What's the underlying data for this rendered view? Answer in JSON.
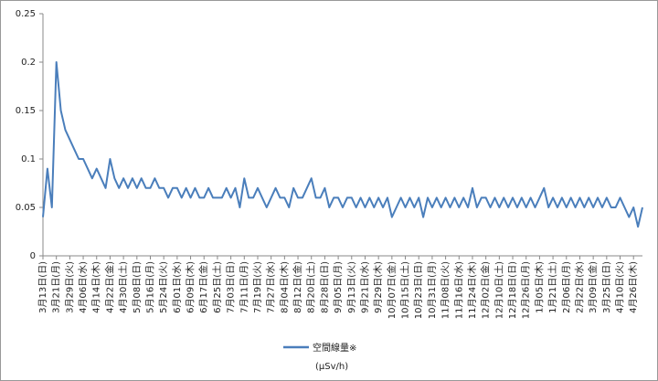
{
  "chart_data": {
    "type": "line",
    "categories": [
      "3月13日(日)",
      null,
      null,
      "3月21日(月)",
      null,
      null,
      "3月29日(火)",
      null,
      null,
      "4月06日(水)",
      null,
      null,
      "4月14日(木)",
      null,
      null,
      "4月22日(金)",
      null,
      null,
      "4月30日(土)",
      null,
      null,
      "5月08日(日)",
      null,
      null,
      "5月16日(月)",
      null,
      null,
      "5月24日(火)",
      null,
      null,
      "6月01日(水)",
      null,
      null,
      "6月09日(木)",
      null,
      null,
      "6月17日(金)",
      null,
      null,
      "6月25日(土)",
      null,
      null,
      "7月03日(日)",
      null,
      null,
      "7月11日(月)",
      null,
      null,
      "7月19日(火)",
      null,
      null,
      "7月27日(水)",
      null,
      null,
      "8月04日(木)",
      null,
      null,
      "8月12日(金)",
      null,
      null,
      "8月20日(土)",
      null,
      null,
      "8月28日(日)",
      null,
      null,
      "9月05日(月)",
      null,
      null,
      "9月13日(火)",
      null,
      null,
      "9月21日(水)",
      null,
      null,
      "9月29日(木)",
      null,
      null,
      "10月07日(金)",
      null,
      null,
      "10月15日(土)",
      null,
      null,
      "10月23日(日)",
      null,
      null,
      "10月31日(月)",
      null,
      null,
      "11月08日(火)",
      null,
      null,
      "11月16日(水)",
      null,
      null,
      "11月24日(木)",
      null,
      null,
      "12月02日(金)",
      null,
      null,
      "12月10日(土)",
      null,
      null,
      "12月18日(日)",
      null,
      null,
      "12月26日(月)",
      null,
      null,
      "1月05日(木)",
      null,
      null,
      "1月21日(土)",
      null,
      null,
      "2月06日(月)",
      null,
      null,
      "2月22日(水)",
      null,
      null,
      "3月09日(金)",
      null,
      null,
      "3月25日(日)",
      null,
      null,
      "4月10日(火)",
      null,
      null,
      "4月26日(木)",
      null,
      null
    ],
    "series": [
      {
        "name": "空間線量※",
        "color": "#4a7ebb",
        "values": [
          0.04,
          0.09,
          0.05,
          0.2,
          0.15,
          0.13,
          0.12,
          0.11,
          0.1,
          0.1,
          0.09,
          0.08,
          0.09,
          0.08,
          0.07,
          0.1,
          0.08,
          0.07,
          0.08,
          0.07,
          0.08,
          0.07,
          0.08,
          0.07,
          0.07,
          0.08,
          0.07,
          0.07,
          0.06,
          0.07,
          0.07,
          0.06,
          0.07,
          0.06,
          0.07,
          0.06,
          0.06,
          0.07,
          0.06,
          0.06,
          0.06,
          0.07,
          0.06,
          0.07,
          0.05,
          0.08,
          0.06,
          0.06,
          0.07,
          0.06,
          0.05,
          0.06,
          0.07,
          0.06,
          0.06,
          0.05,
          0.07,
          0.06,
          0.06,
          0.07,
          0.08,
          0.06,
          0.06,
          0.07,
          0.05,
          0.06,
          0.06,
          0.05,
          0.06,
          0.06,
          0.05,
          0.06,
          0.05,
          0.06,
          0.05,
          0.06,
          0.05,
          0.06,
          0.04,
          0.05,
          0.06,
          0.05,
          0.06,
          0.05,
          0.06,
          0.04,
          0.06,
          0.05,
          0.06,
          0.05,
          0.06,
          0.05,
          0.06,
          0.05,
          0.06,
          0.05,
          0.07,
          0.05,
          0.06,
          0.06,
          0.05,
          0.06,
          0.05,
          0.06,
          0.05,
          0.06,
          0.05,
          0.06,
          0.05,
          0.06,
          0.05,
          0.06,
          0.07,
          0.05,
          0.06,
          0.05,
          0.06,
          0.05,
          0.06,
          0.05,
          0.06,
          0.05,
          0.06,
          0.05,
          0.06,
          0.05,
          0.06,
          0.05,
          0.05,
          0.06,
          0.05,
          0.04,
          0.05,
          0.03,
          0.05
        ]
      }
    ],
    "legend_note": "(μSv/h)",
    "ylim": [
      0,
      0.25
    ],
    "yticks": [
      0,
      0.05,
      0.1,
      0.15,
      0.2,
      0.25
    ],
    "grid": false
  }
}
